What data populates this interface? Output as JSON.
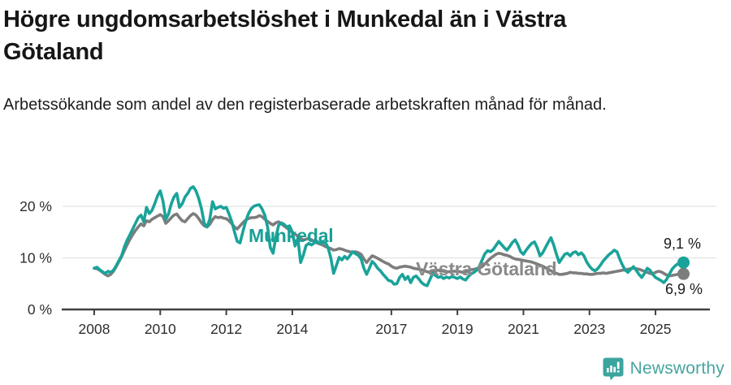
{
  "header": {
    "title": "Högre ungdomsarbetslöshet i Munkedal än i Västra Götaland",
    "subtitle": "Arbetssökande som andel av den registerbaserade arbetskraften månad för månad."
  },
  "chart_data": {
    "type": "line",
    "title": "Högre ungdomsarbetslöshet i Munkedal än i Västra Götaland",
    "subtitle": "Arbetssökande som andel av den registerbaserade arbetskraften månad för månad.",
    "x_axis": {
      "start_year": 2008,
      "interval": "monthly",
      "tick_years": [
        2008,
        2010,
        2012,
        2014,
        2017,
        2019,
        2021,
        2023,
        2025
      ]
    },
    "y_axis": {
      "unit": "%",
      "lim": [
        0,
        25
      ],
      "ticks": [
        {
          "value": 0,
          "label": "0 %"
        },
        {
          "value": 10,
          "label": "10 %"
        },
        {
          "value": 20,
          "label": "20 %"
        }
      ]
    },
    "grid": "horizontal",
    "legend": "inline-labels",
    "series": [
      {
        "name": "Munkedal",
        "color": "#1aa39a",
        "end_label": "9,1 %",
        "end_value": 9.1,
        "values": [
          8.0,
          8.2,
          7.7,
          7.3,
          7.0,
          7.4,
          7.2,
          7.6,
          8.5,
          9.5,
          10.5,
          12.2,
          13.5,
          14.5,
          15.6,
          16.7,
          17.8,
          18.3,
          17.0,
          19.8,
          18.6,
          19.2,
          20.5,
          22.0,
          23.0,
          21.0,
          17.5,
          18.5,
          20.5,
          21.8,
          22.5,
          19.8,
          20.5,
          21.8,
          22.5,
          23.5,
          23.8,
          23.0,
          21.5,
          19.5,
          16.7,
          16.0,
          17.5,
          20.9,
          19.5,
          19.8,
          20.0,
          19.6,
          19.8,
          18.5,
          17.0,
          15.0,
          13.2,
          12.9,
          15.0,
          17.0,
          18.5,
          19.5,
          20.0,
          20.2,
          20.3,
          19.5,
          18.3,
          16.0,
          12.0,
          10.9,
          14.0,
          16.3,
          16.8,
          16.5,
          16.0,
          16.2,
          15.0,
          12.3,
          13.8,
          9.1,
          10.5,
          12.4,
          12.8,
          12.5,
          12.9,
          13.2,
          12.8,
          13.0,
          13.0,
          12.0,
          10.0,
          7.0,
          8.5,
          10.1,
          9.6,
          10.3,
          9.8,
          10.5,
          11.2,
          10.8,
          10.5,
          9.8,
          8.0,
          6.8,
          8.0,
          9.3,
          8.8,
          8.0,
          7.5,
          6.8,
          6.2,
          5.6,
          5.5,
          4.9,
          5.0,
          6.2,
          6.8,
          5.8,
          6.4,
          5.2,
          6.2,
          6.5,
          5.9,
          5.2,
          4.8,
          4.6,
          5.8,
          7.0,
          6.6,
          6.2,
          6.4,
          6.0,
          6.3,
          6.1,
          6.4,
          6.2,
          6.0,
          6.3,
          5.9,
          5.7,
          6.4,
          6.9,
          7.2,
          7.6,
          8.4,
          9.6,
          10.8,
          11.4,
          11.2,
          11.6,
          12.4,
          13.2,
          12.6,
          12.0,
          11.5,
          12.2,
          13.0,
          13.5,
          12.5,
          11.2,
          10.7,
          11.5,
          12.2,
          12.8,
          13.1,
          12.0,
          10.4,
          11.0,
          12.0,
          13.0,
          13.9,
          12.5,
          10.7,
          9.1,
          9.9,
          10.7,
          10.9,
          10.4,
          11.0,
          11.2,
          10.6,
          11.0,
          10.4,
          9.2,
          8.4,
          7.8,
          7.5,
          7.9,
          8.6,
          9.4,
          10.0,
          10.6,
          11.0,
          11.5,
          11.2,
          9.8,
          8.6,
          7.6,
          7.2,
          7.8,
          8.3,
          7.6,
          6.8,
          6.2,
          7.0,
          8.0,
          7.6,
          6.8,
          6.2,
          5.9,
          5.6,
          5.2,
          5.8,
          6.8,
          7.8,
          8.4,
          8.8,
          9.1
        ]
      },
      {
        "name": "Västra Götaland",
        "color": "#7d7d7d",
        "end_label": "6,9 %",
        "end_value": 6.9,
        "values": [
          8.0,
          7.9,
          7.6,
          7.2,
          6.8,
          6.5,
          6.8,
          7.4,
          8.3,
          9.3,
          10.3,
          11.5,
          12.6,
          13.6,
          14.5,
          15.3,
          16.0,
          16.6,
          16.2,
          17.2,
          17.0,
          17.5,
          17.8,
          18.1,
          18.4,
          18.0,
          16.7,
          17.2,
          17.8,
          18.3,
          18.5,
          17.8,
          17.2,
          17.0,
          17.6,
          18.2,
          18.6,
          18.3,
          17.6,
          16.8,
          16.2,
          16.0,
          16.5,
          17.4,
          18.0,
          17.8,
          17.9,
          17.7,
          17.6,
          17.2,
          16.6,
          16.0,
          15.6,
          16.2,
          16.8,
          17.3,
          17.6,
          17.8,
          17.8,
          17.9,
          18.2,
          18.0,
          17.5,
          17.1,
          16.7,
          16.4,
          16.8,
          17.0,
          16.6,
          16.2,
          15.8,
          15.4,
          15.0,
          14.6,
          14.2,
          13.8,
          13.5,
          13.6,
          13.8,
          13.5,
          13.2,
          12.9,
          12.7,
          12.5,
          12.2,
          12.0,
          11.8,
          11.5,
          11.6,
          11.8,
          11.7,
          11.5,
          11.3,
          11.2,
          11.1,
          11.2,
          11.0,
          10.7,
          9.8,
          9.1,
          9.8,
          10.4,
          10.2,
          9.9,
          9.6,
          9.3,
          9.0,
          8.8,
          8.4,
          8.1,
          8.0,
          8.2,
          8.3,
          8.4,
          8.3,
          8.2,
          8.0,
          7.9,
          7.8,
          7.7,
          7.5,
          7.3,
          7.2,
          7.3,
          7.5,
          7.6,
          7.5,
          7.4,
          7.3,
          7.3,
          7.4,
          7.4,
          7.4,
          7.3,
          7.2,
          7.3,
          7.5,
          7.7,
          7.8,
          7.9,
          8.0,
          8.3,
          8.8,
          9.4,
          9.9,
          10.3,
          10.7,
          10.9,
          10.8,
          10.6,
          10.5,
          10.3,
          10.0,
          9.8,
          9.7,
          9.6,
          9.5,
          9.4,
          9.3,
          9.2,
          9.0,
          8.8,
          8.6,
          8.4,
          8.1,
          7.8,
          7.5,
          7.2,
          7.0,
          6.8,
          6.8,
          6.9,
          7.0,
          7.2,
          7.1,
          7.1,
          7.0,
          7.0,
          6.9,
          6.9,
          6.8,
          6.8,
          6.9,
          7.0,
          7.0,
          7.1,
          7.0,
          7.1,
          7.2,
          7.3,
          7.4,
          7.5,
          7.6,
          7.7,
          7.8,
          7.9,
          8.0,
          7.9,
          7.8,
          7.6,
          7.4,
          7.2,
          7.0,
          6.9,
          7.2,
          7.4,
          7.3,
          7.0,
          6.7,
          6.5,
          6.6,
          6.7,
          6.8,
          6.9
        ]
      }
    ],
    "colors": {
      "munkedal": "#1aa39a",
      "vastra_gotaland": "#7d7d7d",
      "grid": "#e2e2e2",
      "axis": "#404040",
      "text": "#2e2e2e"
    }
  },
  "footer": {
    "brand": "Newsworthy"
  }
}
